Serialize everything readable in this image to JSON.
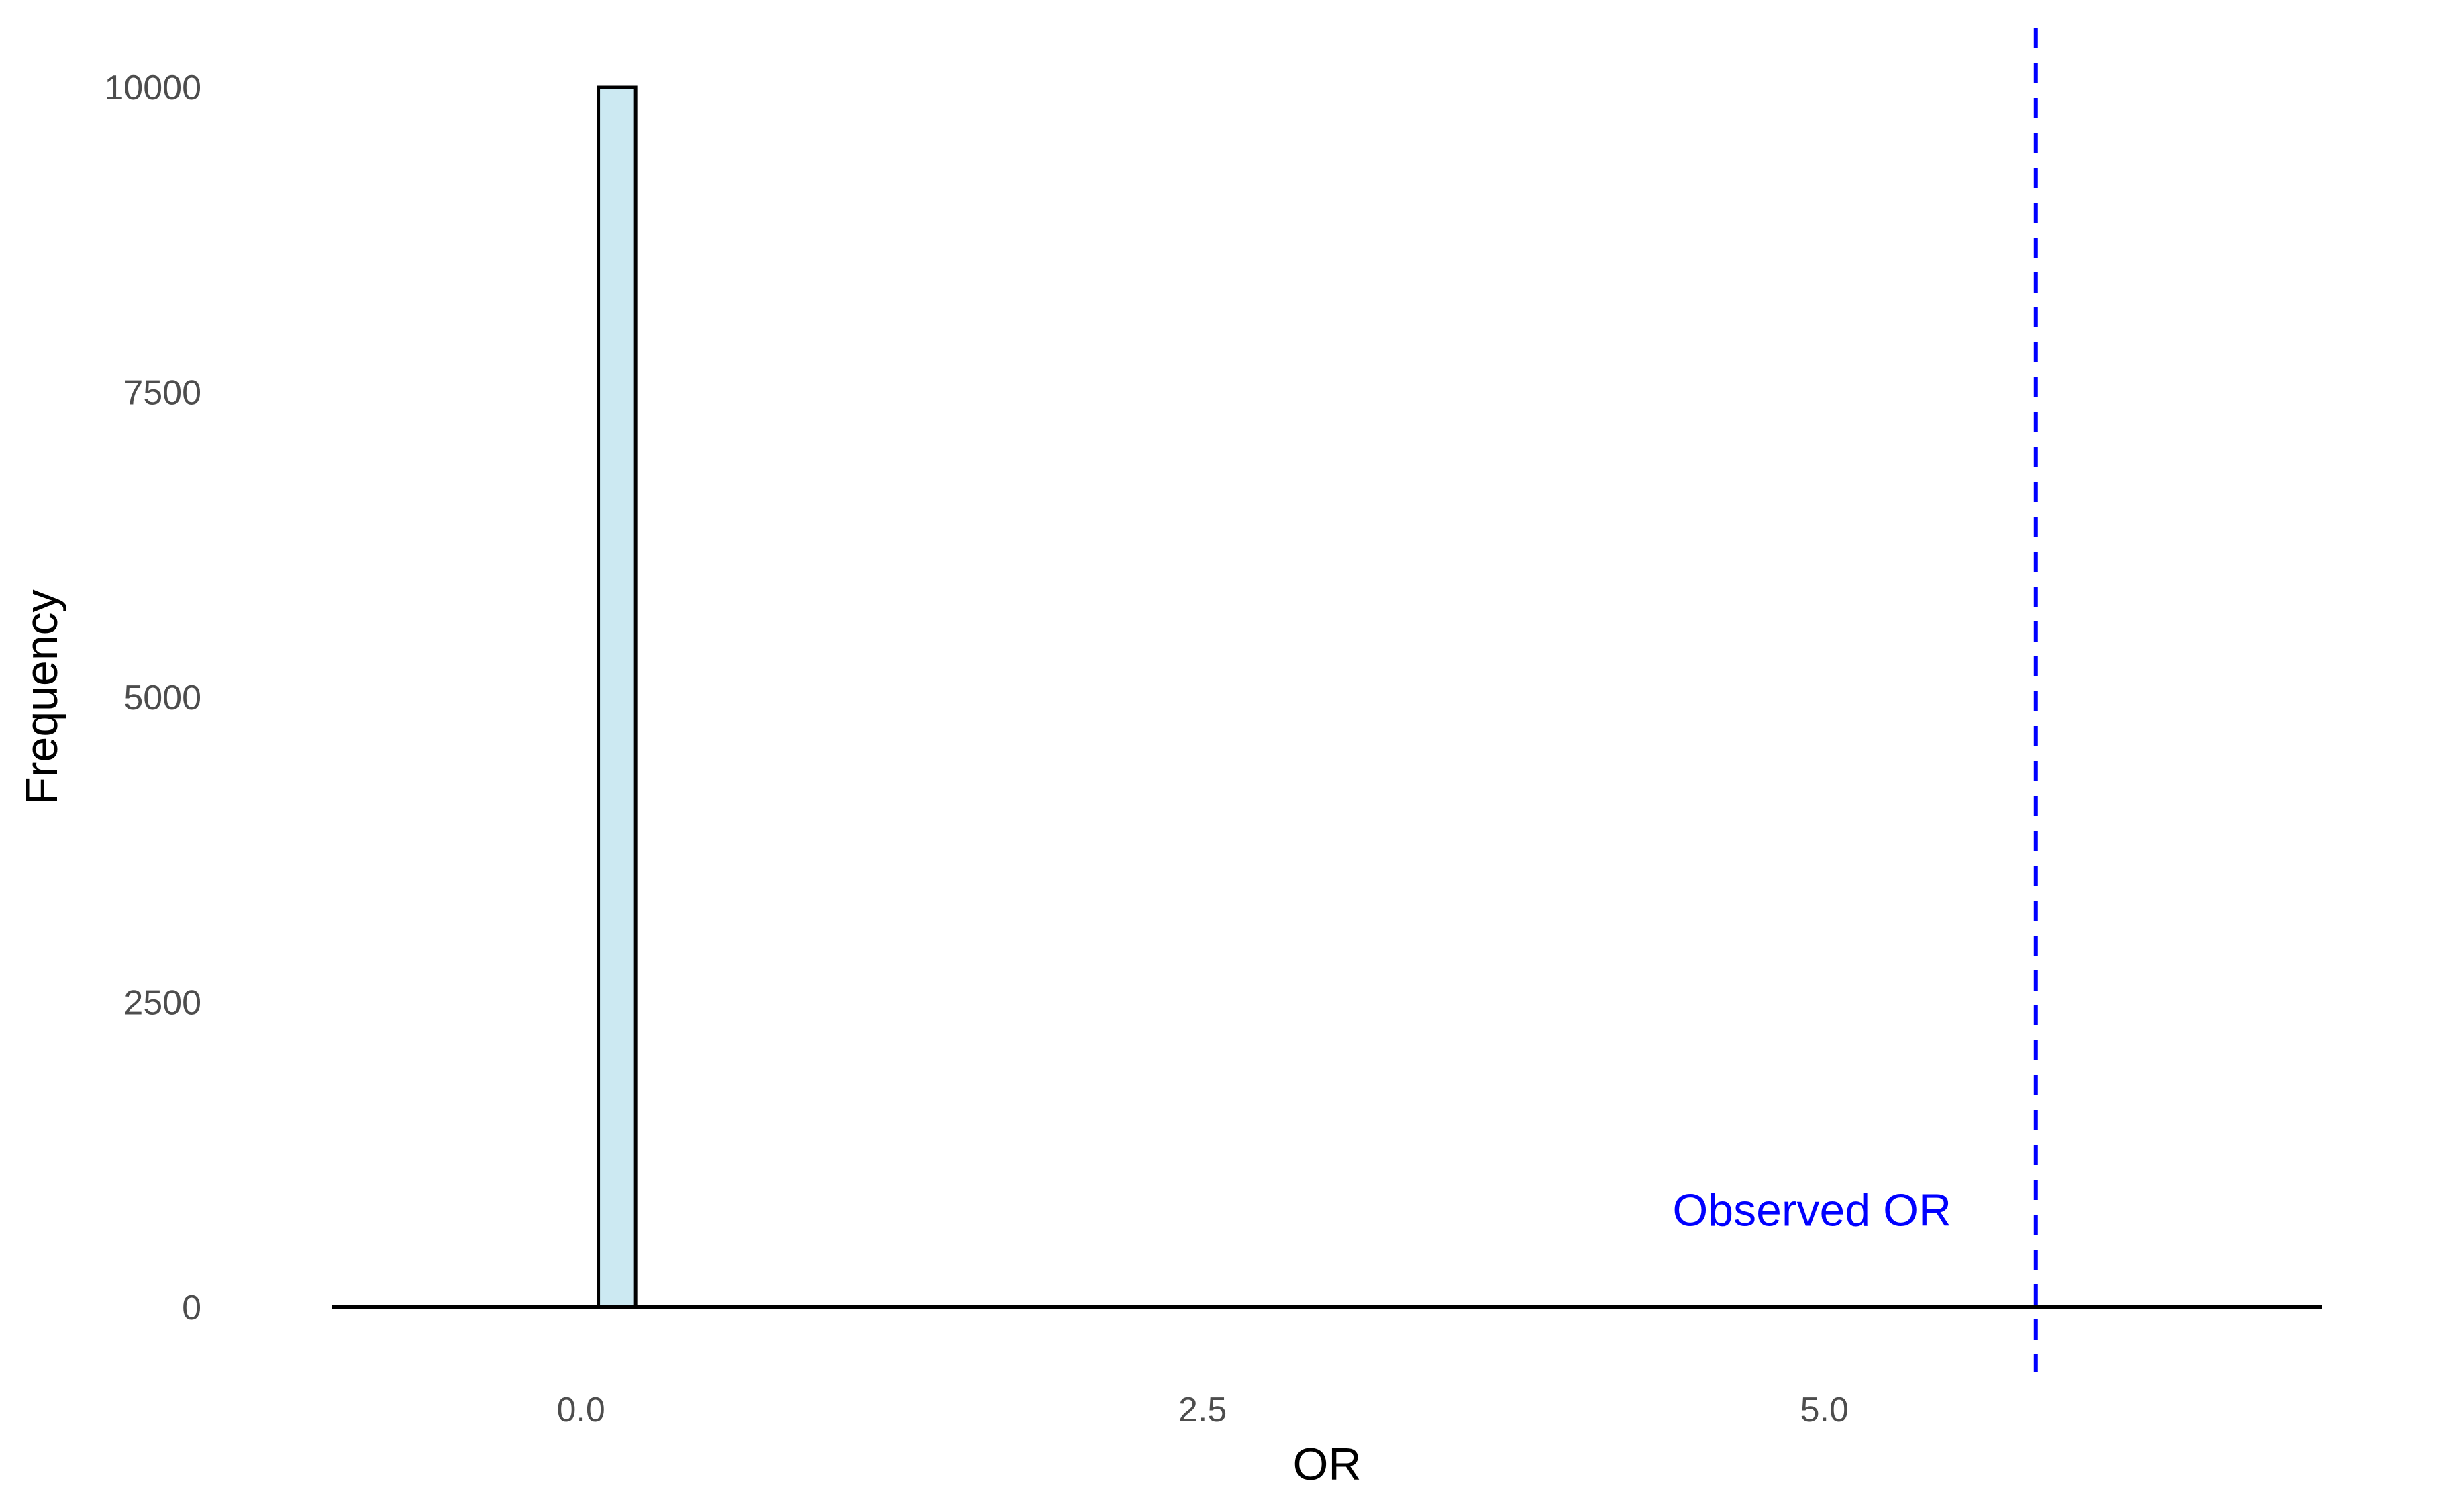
{
  "chart_data": {
    "type": "bar",
    "subtype": "histogram",
    "title": "",
    "xlabel": "OR",
    "ylabel": "Frequency",
    "xlim": [
      -1.0,
      7.0
    ],
    "ylim": [
      0,
      10000
    ],
    "grid": false,
    "legend": "none",
    "x_ticks": [
      0.0,
      2.5,
      5.0
    ],
    "x_tick_labels": [
      "0.0",
      "2.5",
      "5.0"
    ],
    "y_ticks": [
      0,
      2500,
      5000,
      7500,
      10000
    ],
    "y_tick_labels": [
      "0",
      "2500",
      "5000",
      "7500",
      "10000"
    ],
    "bins": [
      {
        "x_start": 0.07,
        "x_end": 0.22,
        "count": 10000
      }
    ],
    "bar_fill": "#cce9f2",
    "bar_stroke": "#000000",
    "reference_line": {
      "x": 5.85,
      "color": "#0000ff",
      "style": "dashed"
    },
    "annotation": {
      "text": "Observed OR",
      "x": 4.95,
      "y": 800,
      "color": "#0000ff"
    }
  }
}
